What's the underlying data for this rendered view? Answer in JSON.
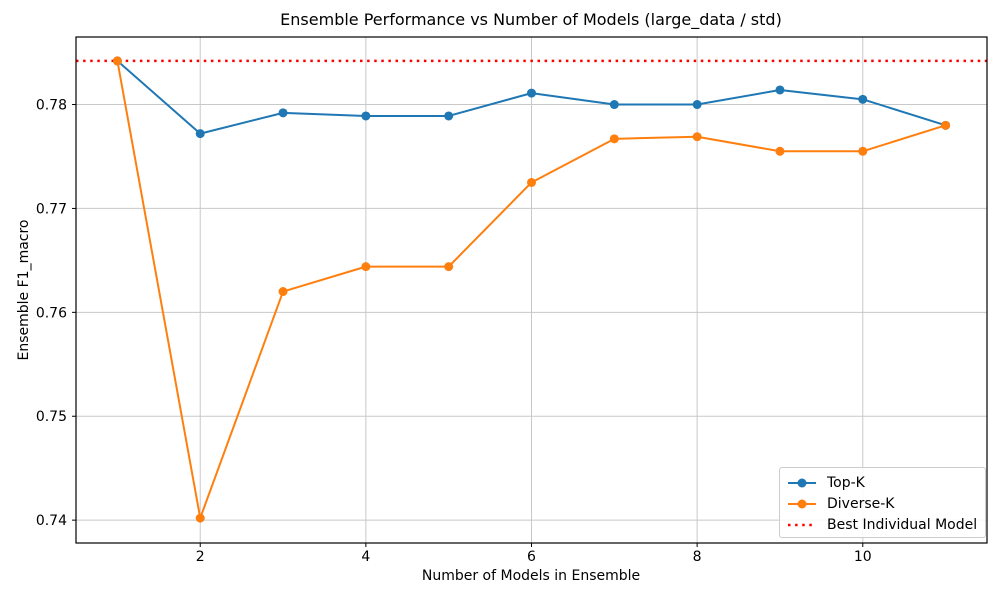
{
  "chart_data": {
    "type": "line",
    "title": "Ensemble Performance vs Number of Models (large_data / std)",
    "xlabel": "Number of Models in Ensemble",
    "ylabel": "Ensemble F1_macro",
    "x": [
      1,
      2,
      3,
      4,
      5,
      6,
      7,
      8,
      9,
      10,
      11
    ],
    "series": [
      {
        "name": "Top-K",
        "color": "#1f77b4",
        "marker": "circle",
        "values": [
          0.7842,
          0.7772,
          0.7792,
          0.7789,
          0.7789,
          0.7811,
          0.78,
          0.78,
          0.7814,
          0.7805,
          0.778
        ]
      },
      {
        "name": "Diverse-K",
        "color": "#ff7f0e",
        "marker": "circle",
        "values": [
          0.7842,
          0.7402,
          0.762,
          0.7644,
          0.7644,
          0.7725,
          0.7767,
          0.7769,
          0.7755,
          0.7755,
          0.778
        ]
      }
    ],
    "reference_line": {
      "label": "Best Individual Model",
      "value": 0.7842,
      "color": "#ff0000",
      "style": "dotted"
    },
    "xlim": [
      0.5,
      11.5
    ],
    "ylim": [
      0.7378,
      0.7865
    ],
    "xticks": {
      "values": [
        2,
        4,
        6,
        8,
        10
      ],
      "labels": [
        "2",
        "4",
        "6",
        "8",
        "10"
      ]
    },
    "yticks": {
      "values": [
        0.74,
        0.75,
        0.76,
        0.77,
        0.78
      ],
      "labels": [
        "0.74",
        "0.75",
        "0.76",
        "0.77",
        "0.78"
      ]
    },
    "grid": true,
    "grid_color": "#c8c8c8",
    "legend_position": "lower right"
  }
}
